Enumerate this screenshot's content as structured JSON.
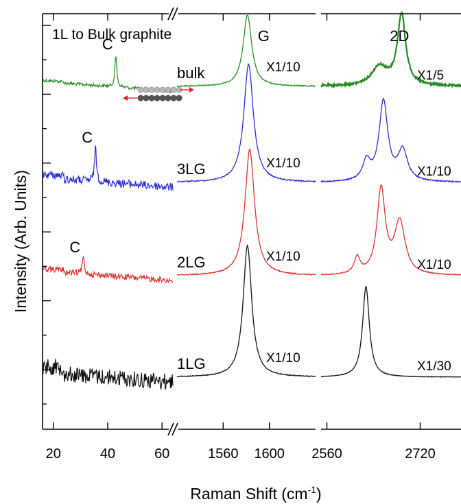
{
  "chart_data": {
    "type": "line",
    "title": "1L to Bulk graphite",
    "xlabel": "Raman Shift (cm",
    "xlabel_superscript": "-1",
    "xlabel_close": ")",
    "ylabel": "Intensity (Arb. Units)",
    "colors": {
      "bulk": "#228b22",
      "3LG": "#2a2ad4",
      "2LG": "#e03030",
      "1LG": "#111111",
      "arrow": "#e8202a"
    },
    "panels": [
      {
        "name": "low",
        "xlim": [
          16,
          64
        ],
        "xticks": [
          20,
          40,
          60
        ]
      },
      {
        "name": "G",
        "xlim": [
          1520,
          1640
        ],
        "xticks": [
          1560,
          1600
        ]
      },
      {
        "name": "2D",
        "xlim": [
          2550,
          2790
        ],
        "xticks": [
          2560,
          2720
        ]
      }
    ],
    "peak_labels": {
      "G": "G",
      "D2": "2D",
      "C": "C"
    },
    "series": [
      {
        "name": "bulk",
        "color_key": "bulk",
        "scale_G": "X1/10",
        "scale_2D": "X1/5",
        "low": {
          "baseline": 0.5,
          "c_pos": 43.0,
          "c_amp": 0.22,
          "noise": 0.012
        },
        "G": {
          "baseline": 0.5,
          "peak": 1581,
          "width": 9,
          "amp": 0.52,
          "noise": 0.004
        },
        "D2": {
          "baseline": 0.5,
          "noise": 0.008,
          "peaks": [
            {
              "pos": 2688,
              "width": 17,
              "amp": 0.52
            },
            {
              "pos": 2650,
              "width": 32,
              "amp": 0.14
            }
          ]
        }
      },
      {
        "name": "3LG",
        "color_key": "3LG",
        "scale_G": "X1/10",
        "scale_2D": "X1/10",
        "low": {
          "baseline": 1.2,
          "c_pos": 35.5,
          "c_amp": 0.24,
          "noise": 0.03
        },
        "G": {
          "baseline": 1.2,
          "peak": 1582,
          "width": 10,
          "amp": 0.86,
          "noise": 0.004
        },
        "D2": {
          "baseline": 1.2,
          "noise": 0.004,
          "peaks": [
            {
              "pos": 2657,
              "width": 18,
              "amp": 0.58
            },
            {
              "pos": 2690,
              "width": 20,
              "amp": 0.22
            },
            {
              "pos": 2628,
              "width": 16,
              "amp": 0.14
            }
          ]
        }
      },
      {
        "name": "2LG",
        "color_key": "2LG",
        "scale_G": "X1/10",
        "scale_2D": "X1/10",
        "low": {
          "baseline": 1.88,
          "c_pos": 31.0,
          "c_amp": 0.12,
          "noise": 0.022
        },
        "G": {
          "baseline": 1.88,
          "peak": 1583,
          "width": 10,
          "amp": 0.92,
          "noise": 0.004
        },
        "D2": {
          "baseline": 1.88,
          "noise": 0.003,
          "peaks": [
            {
              "pos": 2653,
              "width": 17,
              "amp": 0.62
            },
            {
              "pos": 2685,
              "width": 22,
              "amp": 0.38
            },
            {
              "pos": 2612,
              "width": 12,
              "amp": 0.12
            }
          ]
        }
      },
      {
        "name": "1LG",
        "color_key": "1LG",
        "scale_G": "X1/10",
        "scale_2D": "X1/30",
        "low": {
          "baseline": 2.62,
          "c_pos": null,
          "c_amp": 0,
          "noise": 0.06
        },
        "G": {
          "baseline": 2.62,
          "peak": 1581,
          "width": 9,
          "amp": 0.96,
          "noise": 0.003
        },
        "D2": {
          "baseline": 2.62,
          "noise": 0.002,
          "peaks": [
            {
              "pos": 2627,
              "width": 14,
              "amp": 0.66
            }
          ]
        }
      }
    ]
  }
}
